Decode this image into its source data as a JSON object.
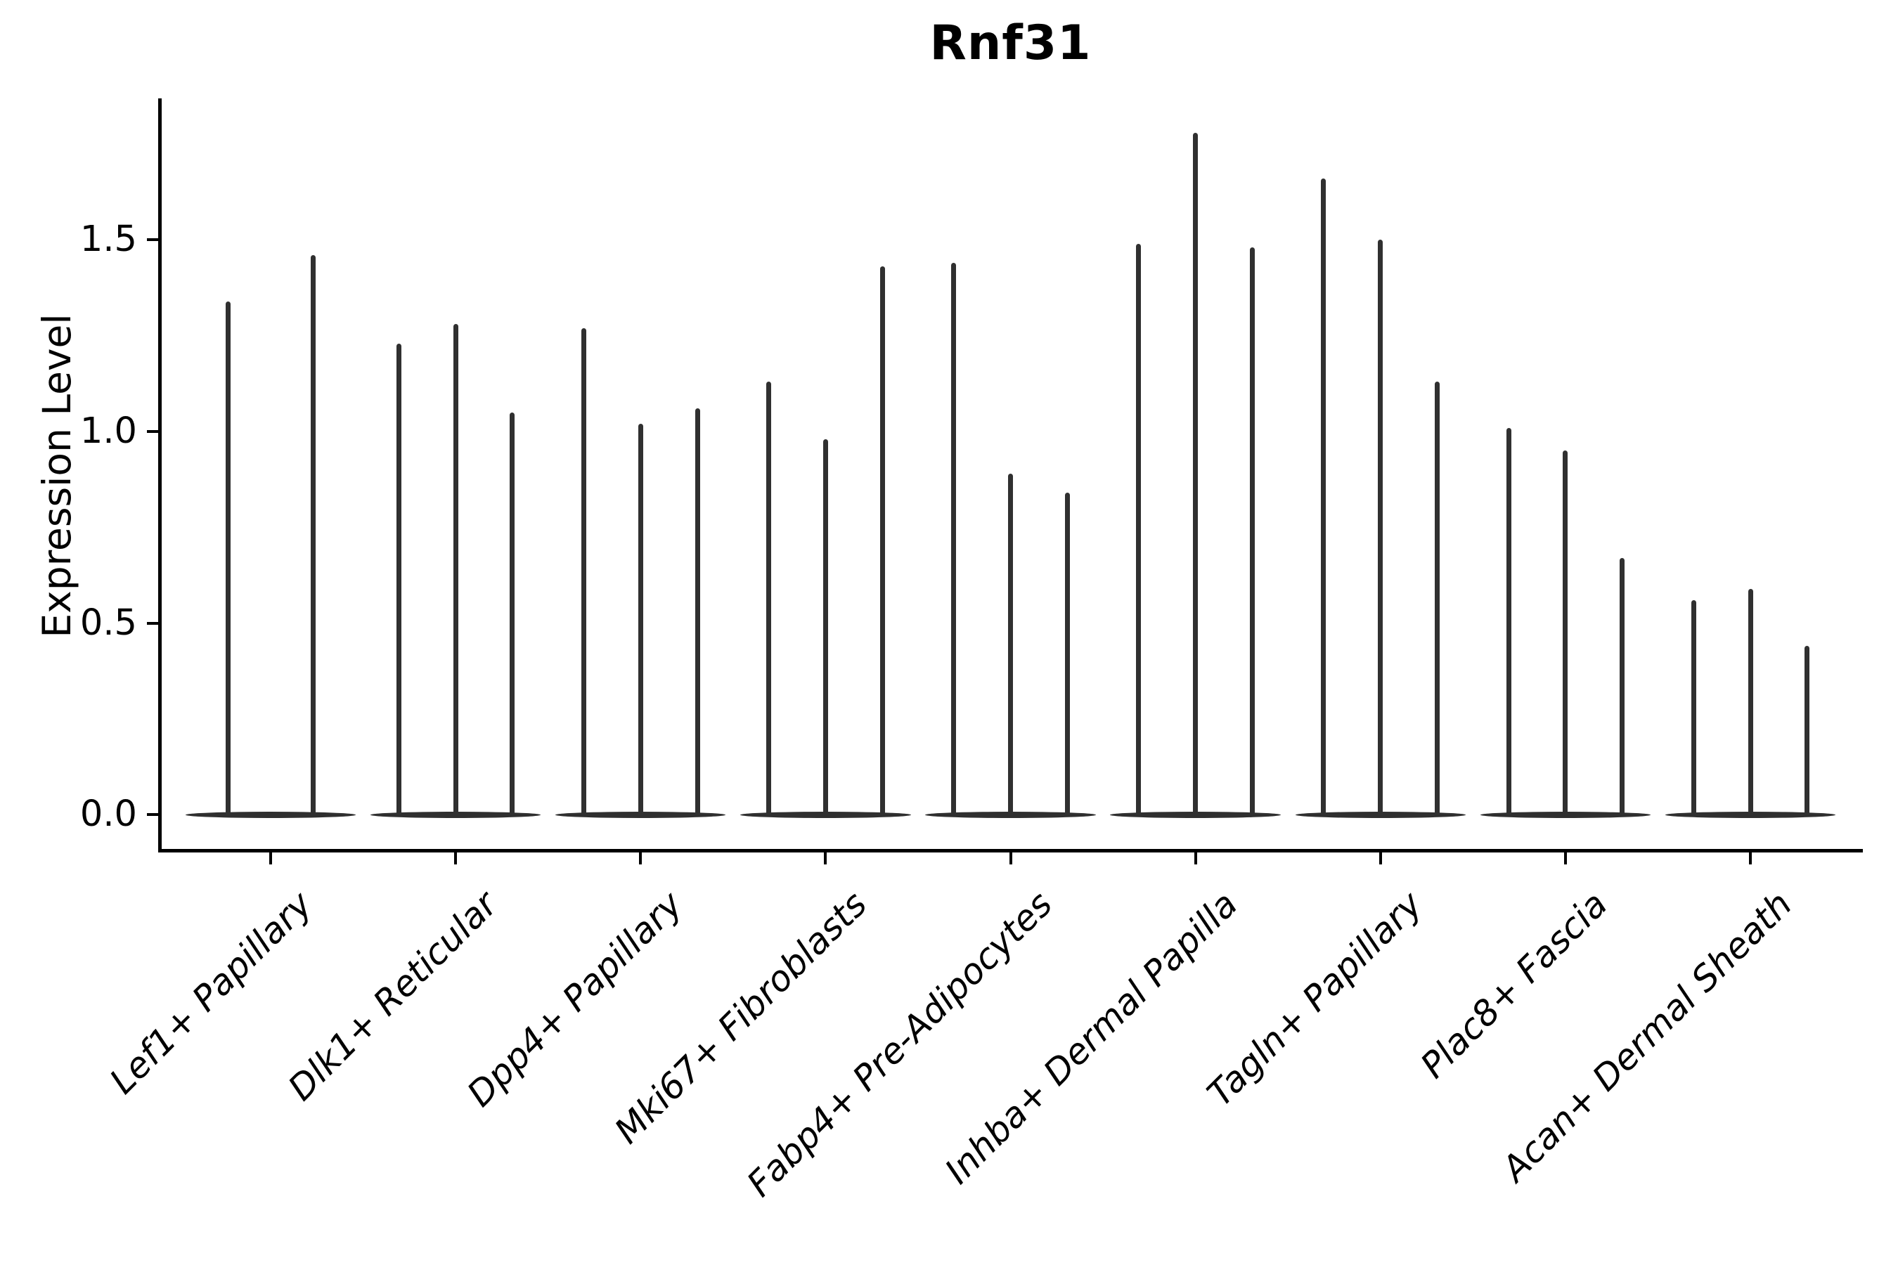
{
  "chart_data": {
    "type": "violin",
    "title": "Rnf31",
    "ylabel": "Expression Level",
    "xlabel": "",
    "categories": [
      "Lef1+ Papillary",
      "Dlk1+ Reticular",
      "Dpp4+ Papillary",
      "Mki67+ Fibroblasts",
      "Fabp4+ Pre-Adipocytes",
      "Inhba+ Dermal Papilla",
      "Tagln+ Papillary",
      "Plac8+ Fascia",
      "Acan+ Dermal Sheath"
    ],
    "series": [
      {
        "category": "Lef1+ Papillary",
        "violin_peaks": [
          1.34,
          1.46
        ]
      },
      {
        "category": "Dlk1+ Reticular",
        "violin_peaks": [
          1.23,
          1.28,
          1.05
        ]
      },
      {
        "category": "Dpp4+ Papillary",
        "violin_peaks": [
          1.27,
          1.02,
          1.06
        ]
      },
      {
        "category": "Mki67+ Fibroblasts",
        "violin_peaks": [
          1.13,
          0.98,
          1.43
        ]
      },
      {
        "category": "Fabp4+ Pre-Adipocytes",
        "violin_peaks": [
          1.44,
          0.89,
          0.84
        ]
      },
      {
        "category": "Inhba+ Dermal Papilla",
        "violin_peaks": [
          1.49,
          1.78,
          1.48
        ]
      },
      {
        "category": "Tagln+ Papillary",
        "violin_peaks": [
          1.66,
          1.5,
          1.13
        ]
      },
      {
        "category": "Plac8+ Fascia",
        "violin_peaks": [
          1.01,
          0.95,
          0.67
        ]
      },
      {
        "category": "Acan+ Dermal Sheath",
        "violin_peaks": [
          0.56,
          0.59,
          0.44
        ]
      }
    ],
    "yticks": [
      0.0,
      0.5,
      1.0,
      1.5
    ],
    "ylim": [
      -0.089,
      1.869
    ],
    "grid": false,
    "legend": null,
    "shape_note": "each violin is needle-shaped: wide flat density blob at 0 with a thin spike rising to its max value"
  },
  "colors": {
    "violin": "#303030",
    "violin_base": "#2f2f2f",
    "axis": "#000000",
    "text": "#000000",
    "background": "#ffffff"
  }
}
